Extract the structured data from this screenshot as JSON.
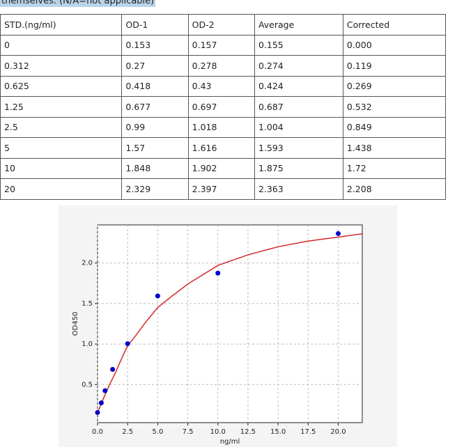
{
  "caption": "themselves. (N/A=not applicable)",
  "table": {
    "header": [
      "STD.(ng/ml)",
      "OD-1",
      "OD-2",
      "Average",
      "Corrected"
    ],
    "rows": [
      [
        "0",
        "0.153",
        "0.157",
        "0.155",
        "0.000"
      ],
      [
        "0.312",
        "0.27",
        "0.278",
        "0.274",
        "0.119"
      ],
      [
        "0.625",
        "0.418",
        "0.43",
        "0.424",
        "0.269"
      ],
      [
        "1.25",
        "0.677",
        "0.697",
        "0.687",
        "0.532"
      ],
      [
        "2.5",
        "0.99",
        "1.018",
        "1.004",
        "0.849"
      ],
      [
        "5",
        "1.57",
        "1.616",
        "1.593",
        "1.438"
      ],
      [
        "10",
        "1.848",
        "1.902",
        "1.875",
        "1.72"
      ],
      [
        "20",
        "2.329",
        "2.397",
        "2.363",
        "2.208"
      ]
    ]
  },
  "chart_data": {
    "type": "scatter",
    "x_label": "ng/ml",
    "y_label": "OD450",
    "xlim": [
      0,
      22
    ],
    "ylim": [
      0.03,
      2.47
    ],
    "xticks": [
      {
        "value": 0,
        "label": "0.0"
      },
      {
        "value": 2.5,
        "label": "2.5"
      },
      {
        "value": 5,
        "label": "5.0"
      },
      {
        "value": 7.5,
        "label": "7.5"
      },
      {
        "value": 10,
        "label": "10.0"
      },
      {
        "value": 12.5,
        "label": "12.5"
      },
      {
        "value": 15,
        "label": "15.0"
      },
      {
        "value": 17.5,
        "label": "17.5"
      },
      {
        "value": 20,
        "label": "20.0"
      }
    ],
    "yticks": [
      0.5,
      {
        "value": 1,
        "label": "1.0"
      },
      1.5,
      {
        "value": 2,
        "label": "2.0"
      }
    ],
    "grid": true,
    "series": [
      {
        "type": "scatter",
        "color": "#0000cc",
        "x": [
          0,
          0.312,
          0.625,
          1.25,
          2.5,
          5,
          10,
          20
        ],
        "values": [
          0.155,
          0.274,
          0.424,
          0.687,
          1.004,
          1.593,
          1.875,
          2.363
        ]
      },
      {
        "type": "line",
        "color": "#d62728",
        "x": [
          0,
          0.5,
          1,
          1.5,
          2,
          2.5,
          3,
          4,
          5,
          6,
          7.5,
          10,
          12.5,
          15,
          17.5,
          20,
          22
        ],
        "values": [
          0.15,
          0.33,
          0.5,
          0.65,
          0.82,
          0.98,
          1.07,
          1.27,
          1.45,
          1.57,
          1.74,
          1.97,
          2.1,
          2.2,
          2.27,
          2.32,
          2.36
        ]
      }
    ]
  }
}
